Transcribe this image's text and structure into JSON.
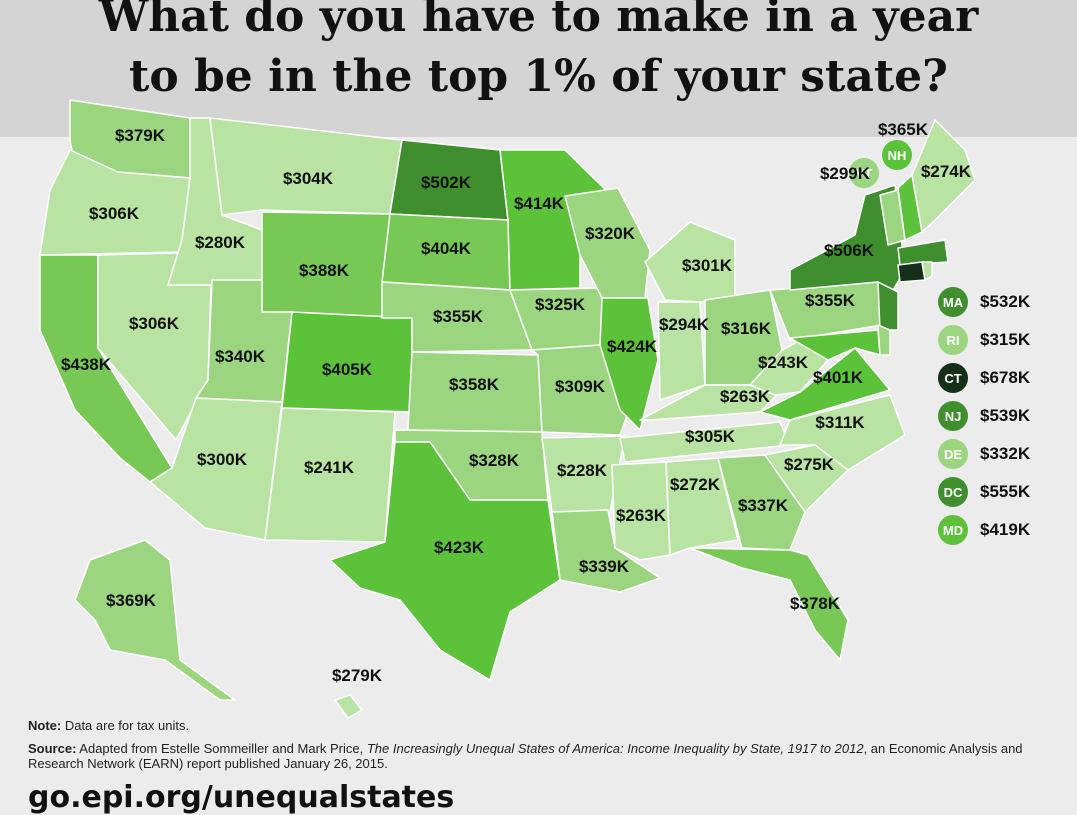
{
  "title": {
    "line1": "What do you have to make in a year",
    "line2": "to be in the top 1% of your state?"
  },
  "colors": {
    "very_light": "#b8e3a2",
    "light": "#9bd57f",
    "medium": "#77c855",
    "bright": "#5cc23a",
    "dark": "#3f8f2e",
    "darkest": "#14301a",
    "background": "#ececec"
  },
  "states": {
    "WA": "$379K",
    "OR": "$306K",
    "CA": "$438K",
    "NV": "$306K",
    "ID": "$280K",
    "MT": "$304K",
    "WY": "$388K",
    "UT": "$340K",
    "AZ": "$300K",
    "CO": "$405K",
    "NM": "$241K",
    "ND": "$502K",
    "SD": "$404K",
    "NE": "$355K",
    "KS": "$358K",
    "OK": "$328K",
    "TX": "$423K",
    "MN": "$414K",
    "IA": "$325K",
    "MO": "$309K",
    "AR": "$228K",
    "LA": "$339K",
    "WI": "$320K",
    "IL": "$424K",
    "MI": "$301K",
    "IN": "$294K",
    "OH": "$316K",
    "KY": "$263K",
    "TN": "$305K",
    "MS": "$263K",
    "AL": "$272K",
    "GA": "$337K",
    "FL": "$378K",
    "SC": "$275K",
    "NC": "$311K",
    "VA": "$401K",
    "WV": "$243K",
    "PA": "$355K",
    "NY": "$506K",
    "ME": "$274K",
    "VT": "$299K",
    "NH": "$365K",
    "AK": "$369K",
    "HI": "$279K"
  },
  "callouts": {
    "VT": {
      "abbr": "VT",
      "value": "$299K"
    },
    "NH": {
      "abbr": "NH",
      "value": "$365K"
    }
  },
  "legend": [
    {
      "abbr": "MA",
      "value": "$532K",
      "tone": "dark"
    },
    {
      "abbr": "RI",
      "value": "$315K",
      "tone": "light"
    },
    {
      "abbr": "CT",
      "value": "$678K",
      "tone": "darkest"
    },
    {
      "abbr": "NJ",
      "value": "$539K",
      "tone": "dark"
    },
    {
      "abbr": "DE",
      "value": "$332K",
      "tone": "light"
    },
    {
      "abbr": "DC",
      "value": "$555K",
      "tone": "dark"
    },
    {
      "abbr": "MD",
      "value": "$419K",
      "tone": "bright"
    }
  ],
  "footer": {
    "note_label": "Note:",
    "note_text": " Data are for tax units.",
    "source_label": "Source:",
    "source_text_1": " Adapted from Estelle Sommeiller and Mark Price, ",
    "source_title": "The Increasingly Unequal States of America: Income Inequality by State, 1917 to 2012",
    "source_text_2": ", an Economic Analysis and Research Network (EARN) report published January 26, 2015.",
    "url": "go.epi.org/unequalstates"
  }
}
